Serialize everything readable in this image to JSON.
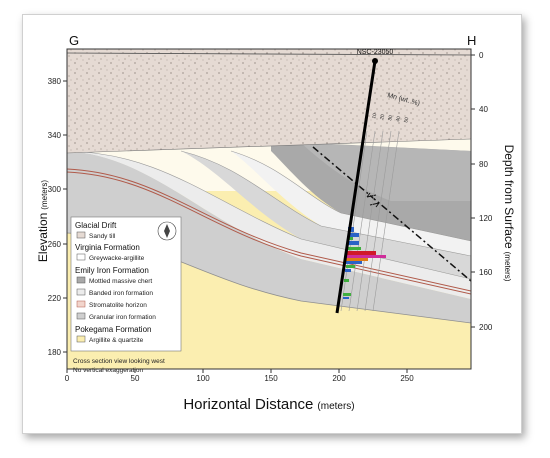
{
  "section": {
    "left_label": "G",
    "right_label": "H",
    "well_label": "NSC-23050",
    "mn_label": "Mn (wt. %)",
    "mn_ticks": [
      "10",
      "20",
      "30",
      "40",
      "50"
    ],
    "axis_x": {
      "title": "Horizontal Distance",
      "unit": "(meters)",
      "ticks": [
        "0",
        "50",
        "100",
        "150",
        "200",
        "250"
      ]
    },
    "axis_y_left": {
      "title": "Elevation",
      "unit": "(meters)",
      "ticks": [
        "180",
        "220",
        "260",
        "300",
        "340",
        "380"
      ]
    },
    "axis_y_right": {
      "title": "Depth from Surface",
      "unit": "(meters)",
      "ticks": [
        "0",
        "40",
        "80",
        "120",
        "160",
        "200"
      ]
    },
    "notes": [
      "Cross section view looking west",
      "No vertical exaggeration"
    ]
  },
  "legend": {
    "groups": [
      {
        "title": "Glacial Drift",
        "items": [
          {
            "label": "Sandy till",
            "color": "#e8ddd6"
          }
        ]
      },
      {
        "title": "Virginia Formation",
        "items": [
          {
            "label": "Greywacke-argillite",
            "color": "#ffffff"
          }
        ]
      },
      {
        "title": "Emily Iron Formation",
        "items": [
          {
            "label": "Mottled massive chert",
            "color": "#a9a9a9"
          },
          {
            "label": "Banded iron formation",
            "color": "#ececec"
          },
          {
            "label": "Stromatolite horizon",
            "color": "#f2d5cc"
          },
          {
            "label": "Granular iron formation",
            "color": "#cfcfcf"
          }
        ]
      },
      {
        "title": "Pokegama Formation",
        "items": [
          {
            "label": "Argillite & quartzite",
            "color": "#fbeeb0"
          }
        ]
      }
    ]
  },
  "colors": {
    "drift": "#e5dad3",
    "virginia": "#fefaec",
    "pokegama": "#fbeeb0",
    "chert": "#a9a9a9",
    "banded": "#ececec",
    "granular": "#cfcfcf",
    "stromatolite": "#b05a4a"
  }
}
